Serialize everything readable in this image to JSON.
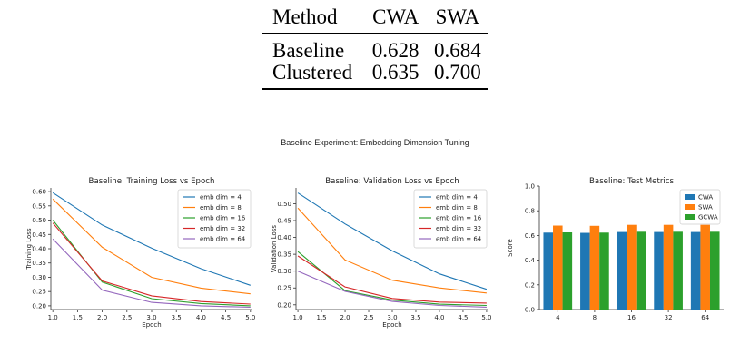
{
  "table": {
    "headers": [
      "Method",
      "CWA",
      "SWA"
    ],
    "rows": [
      [
        "Baseline",
        "0.628",
        "0.684"
      ],
      [
        "Clustered",
        "0.635",
        "0.700"
      ]
    ]
  },
  "figure_title": "Baseline Experiment: Embedding Dimension Tuning",
  "colors": {
    "c1": "#1f77b4",
    "c2": "#ff7f0e",
    "c3": "#2ca02c",
    "c4": "#d62728",
    "c5": "#9467bd"
  },
  "chart_data": [
    {
      "type": "line",
      "title": "Baseline: Training Loss vs Epoch",
      "xlabel": "Epoch",
      "ylabel": "Training Loss",
      "x": [
        1,
        2,
        3,
        4,
        5
      ],
      "xticks": [
        "1.0",
        "1.5",
        "2.0",
        "2.5",
        "3.0",
        "3.5",
        "4.0",
        "4.5",
        "5.0"
      ],
      "yticks": [
        "0.20",
        "0.25",
        "0.30",
        "0.35",
        "0.40",
        "0.45",
        "0.50",
        "0.55",
        "0.60"
      ],
      "xlim": [
        0.96,
        5.04
      ],
      "ylim": [
        0.187,
        0.613
      ],
      "legend_loc": "upper right",
      "series": [
        {
          "name": "emb dim = 4",
          "values": [
            0.596,
            0.483,
            0.402,
            0.33,
            0.272
          ]
        },
        {
          "name": "emb dim = 8",
          "values": [
            0.574,
            0.405,
            0.3,
            0.262,
            0.242
          ]
        },
        {
          "name": "emb dim = 16",
          "values": [
            0.5,
            0.283,
            0.225,
            0.208,
            0.2
          ]
        },
        {
          "name": "emb dim = 32",
          "values": [
            0.49,
            0.287,
            0.235,
            0.215,
            0.206
          ]
        },
        {
          "name": "emb dim = 64",
          "values": [
            0.434,
            0.255,
            0.212,
            0.2,
            0.195
          ]
        }
      ]
    },
    {
      "type": "line",
      "title": "Baseline: Validation Loss vs Epoch",
      "xlabel": "Epoch",
      "ylabel": "Validation Loss",
      "x": [
        1,
        2,
        3,
        4,
        5
      ],
      "xticks": [
        "1.0",
        "1.5",
        "2.0",
        "2.5",
        "3.0",
        "3.5",
        "4.0",
        "4.5",
        "5.0"
      ],
      "yticks": [
        "0.20",
        "0.25",
        "0.30",
        "0.35",
        "0.40",
        "0.45",
        "0.50"
      ],
      "xlim": [
        0.96,
        5.04
      ],
      "ylim": [
        0.186,
        0.547
      ],
      "legend_loc": "upper right",
      "series": [
        {
          "name": "emb dim = 4",
          "values": [
            0.532,
            0.44,
            0.36,
            0.292,
            0.246
          ]
        },
        {
          "name": "emb dim = 8",
          "values": [
            0.487,
            0.333,
            0.273,
            0.25,
            0.235
          ]
        },
        {
          "name": "emb dim = 16",
          "values": [
            0.358,
            0.242,
            0.214,
            0.202,
            0.198
          ]
        },
        {
          "name": "emb dim = 32",
          "values": [
            0.345,
            0.253,
            0.219,
            0.208,
            0.205
          ]
        },
        {
          "name": "emb dim = 64",
          "values": [
            0.3,
            0.24,
            0.21,
            0.198,
            0.193
          ]
        }
      ]
    },
    {
      "type": "bar",
      "title": "Baseline: Test Metrics",
      "xlabel": "",
      "ylabel": "Score",
      "categories": [
        "4",
        "8",
        "16",
        "32",
        "64"
      ],
      "yticks": [
        "0.0",
        "0.2",
        "0.4",
        "0.6",
        "0.8",
        "1.0"
      ],
      "ylim": [
        0,
        1
      ],
      "legend_loc": "upper right",
      "series": [
        {
          "name": "CWA",
          "values": [
            0.623,
            0.621,
            0.628,
            0.628,
            0.628
          ]
        },
        {
          "name": "SWA",
          "values": [
            0.68,
            0.678,
            0.686,
            0.686,
            0.686
          ]
        },
        {
          "name": "GCWA",
          "values": [
            0.625,
            0.623,
            0.63,
            0.63,
            0.63
          ]
        }
      ]
    }
  ]
}
